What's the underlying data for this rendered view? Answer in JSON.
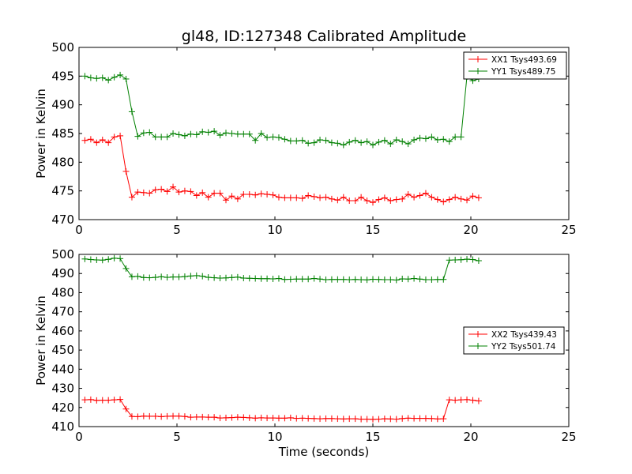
{
  "chart_data": [
    {
      "type": "line",
      "title": "gl48, ID:127348 Calibrated Amplitude",
      "xlabel": "",
      "ylabel": "Power in Kelvin",
      "xlim": [
        0,
        25
      ],
      "ylim": [
        470,
        500
      ],
      "xticks": [
        "0",
        "5",
        "10",
        "15",
        "20",
        "25"
      ],
      "yticks": [
        "470",
        "475",
        "480",
        "485",
        "490",
        "495",
        "500"
      ],
      "grid": false,
      "legend_position": "top-right",
      "x": [
        0.3,
        0.6,
        0.9,
        1.2,
        1.5,
        1.8,
        2.1,
        2.4,
        2.7,
        3.0,
        3.3,
        3.6,
        3.9,
        4.2,
        4.5,
        4.8,
        5.1,
        5.4,
        5.7,
        6.0,
        6.3,
        6.6,
        6.9,
        7.2,
        7.5,
        7.8,
        8.1,
        8.4,
        8.7,
        9.0,
        9.3,
        9.6,
        9.9,
        10.2,
        10.5,
        10.8,
        11.1,
        11.4,
        11.7,
        12.0,
        12.3,
        12.6,
        12.9,
        13.2,
        13.5,
        13.8,
        14.1,
        14.4,
        14.7,
        15.0,
        15.3,
        15.6,
        15.9,
        16.2,
        16.5,
        16.8,
        17.1,
        17.4,
        17.7,
        18.0,
        18.3,
        18.6,
        18.9,
        19.2,
        19.5,
        19.8,
        20.1,
        20.4
      ],
      "series": [
        {
          "name": "XX1 Tsys493.69",
          "color": "#ff0000",
          "values": [
            483.8,
            484.0,
            483.4,
            483.9,
            483.4,
            484.4,
            484.6,
            478.4,
            473.9,
            474.8,
            474.7,
            474.6,
            475.2,
            475.3,
            474.9,
            475.7,
            474.8,
            475.0,
            474.9,
            474.2,
            474.7,
            473.9,
            474.6,
            474.6,
            473.4,
            474.1,
            473.6,
            474.4,
            474.4,
            474.3,
            474.5,
            474.4,
            474.3,
            473.9,
            473.8,
            473.8,
            473.8,
            473.7,
            474.2,
            474.0,
            473.8,
            473.9,
            473.6,
            473.4,
            473.9,
            473.3,
            473.3,
            473.9,
            473.3,
            473.0,
            473.5,
            473.8,
            473.3,
            473.5,
            473.6,
            474.4,
            473.9,
            474.2,
            474.6,
            473.9,
            473.5,
            473.1,
            473.5,
            473.9,
            473.6,
            473.4,
            474.1,
            473.8
          ]
        },
        {
          "name": "YY1 Tsys489.75",
          "color": "#008000",
          "values": [
            495.0,
            494.7,
            494.6,
            494.7,
            494.3,
            494.8,
            495.2,
            494.5,
            488.8,
            484.5,
            485.1,
            485.2,
            484.4,
            484.4,
            484.4,
            485.0,
            484.8,
            484.6,
            484.9,
            484.8,
            485.3,
            485.2,
            485.4,
            484.7,
            485.1,
            485.0,
            484.9,
            484.9,
            484.9,
            483.8,
            485.0,
            484.3,
            484.4,
            484.3,
            484.0,
            483.7,
            483.7,
            483.8,
            483.3,
            483.4,
            483.9,
            483.8,
            483.4,
            483.3,
            483.0,
            483.5,
            483.8,
            483.4,
            483.6,
            483.0,
            483.5,
            483.8,
            483.2,
            483.9,
            483.6,
            483.2,
            483.9,
            484.2,
            484.1,
            484.4,
            483.9,
            484.0,
            483.6,
            484.4,
            484.4,
            494.9,
            494.2,
            494.5
          ]
        }
      ]
    },
    {
      "type": "line",
      "title": "",
      "xlabel": "Time (seconds)",
      "ylabel": "Power in Kelvin",
      "xlim": [
        0,
        25
      ],
      "ylim": [
        410,
        500
      ],
      "xticks": [
        "0",
        "5",
        "10",
        "15",
        "20",
        "25"
      ],
      "yticks": [
        "410",
        "420",
        "430",
        "440",
        "450",
        "460",
        "470",
        "480",
        "490",
        "500"
      ],
      "grid": false,
      "legend_position": "center-right",
      "x": [
        0.3,
        0.6,
        0.9,
        1.2,
        1.5,
        1.8,
        2.1,
        2.4,
        2.7,
        3.0,
        3.3,
        3.6,
        3.9,
        4.2,
        4.5,
        4.8,
        5.1,
        5.4,
        5.7,
        6.0,
        6.3,
        6.6,
        6.9,
        7.2,
        7.5,
        7.8,
        8.1,
        8.4,
        8.7,
        9.0,
        9.3,
        9.6,
        9.9,
        10.2,
        10.5,
        10.8,
        11.1,
        11.4,
        11.7,
        12.0,
        12.3,
        12.6,
        12.9,
        13.2,
        13.5,
        13.8,
        14.1,
        14.4,
        14.7,
        15.0,
        15.3,
        15.6,
        15.9,
        16.2,
        16.5,
        16.8,
        17.1,
        17.4,
        17.7,
        18.0,
        18.3,
        18.6,
        18.9,
        19.2,
        19.5,
        19.8,
        20.1,
        20.4
      ],
      "series": [
        {
          "name": "XX2 Tsys439.43",
          "color": "#ff0000",
          "values": [
            424.0,
            424.1,
            423.7,
            423.8,
            423.8,
            424.0,
            424.2,
            419.2,
            415.3,
            415.2,
            415.5,
            415.4,
            415.4,
            415.2,
            415.4,
            415.5,
            415.5,
            415.3,
            414.9,
            415.0,
            415.0,
            414.9,
            414.9,
            414.5,
            414.6,
            414.7,
            414.9,
            414.8,
            414.6,
            414.4,
            414.6,
            414.5,
            414.5,
            414.4,
            414.4,
            414.6,
            414.3,
            414.4,
            414.3,
            414.2,
            414.1,
            414.2,
            414.2,
            414.1,
            414.0,
            414.1,
            414.1,
            413.9,
            413.9,
            413.8,
            413.9,
            414.1,
            414.0,
            413.9,
            414.2,
            414.4,
            414.3,
            414.3,
            414.3,
            414.2,
            414.0,
            414.1,
            424.0,
            423.8,
            424.0,
            424.1,
            423.8,
            423.4
          ]
        },
        {
          "name": "YY2 Tsys501.74",
          "color": "#008000",
          "values": [
            497.6,
            497.3,
            497.1,
            497.0,
            497.4,
            498.0,
            497.8,
            492.6,
            488.3,
            488.5,
            487.9,
            487.8,
            488.0,
            488.3,
            488.0,
            488.2,
            488.2,
            488.4,
            488.7,
            488.9,
            488.6,
            488.0,
            487.8,
            487.6,
            487.7,
            487.9,
            488.1,
            487.6,
            487.5,
            487.4,
            487.3,
            487.3,
            487.2,
            487.4,
            486.9,
            487.0,
            487.1,
            487.1,
            487.1,
            487.4,
            487.1,
            486.8,
            486.9,
            486.9,
            486.9,
            486.8,
            486.9,
            486.8,
            486.7,
            487.0,
            486.9,
            486.8,
            486.8,
            486.6,
            487.2,
            487.1,
            487.4,
            487.1,
            486.8,
            486.8,
            486.9,
            486.9,
            497.0,
            497.1,
            497.2,
            497.5,
            497.3,
            496.7
          ]
        }
      ]
    }
  ]
}
